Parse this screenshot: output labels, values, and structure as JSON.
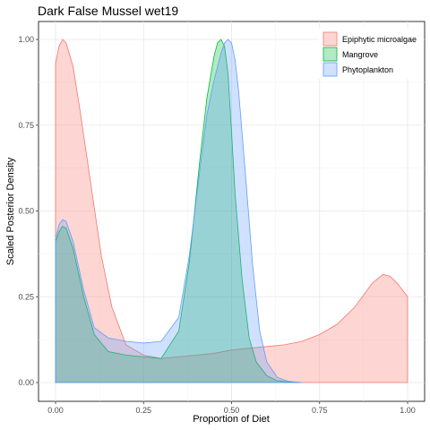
{
  "chart_data": {
    "type": "area",
    "title": "Dark False Mussel wet19",
    "xlabel": "Proportion of Diet",
    "ylabel": "Scaled Posterior Density",
    "xlim": [
      0,
      1
    ],
    "ylim": [
      0,
      1
    ],
    "x_ticks": [
      "0.00",
      "0.25",
      "0.50",
      "0.75",
      "1.00"
    ],
    "y_ticks": [
      "0.00",
      "0.25",
      "0.50",
      "0.75",
      "1.00"
    ],
    "grid": true,
    "legend_position": "top-right",
    "series": [
      {
        "name": "Epiphytic microalgae",
        "fill": "#F8766D",
        "x": [
          0,
          0.01,
          0.02,
          0.03,
          0.05,
          0.07,
          0.1,
          0.13,
          0.16,
          0.2,
          0.25,
          0.3,
          0.35,
          0.4,
          0.45,
          0.5,
          0.55,
          0.6,
          0.65,
          0.7,
          0.75,
          0.8,
          0.85,
          0.9,
          0.93,
          0.95,
          0.97,
          1.0
        ],
        "y": [
          0.93,
          0.98,
          1.0,
          0.99,
          0.92,
          0.79,
          0.58,
          0.37,
          0.22,
          0.11,
          0.08,
          0.07,
          0.075,
          0.08,
          0.085,
          0.095,
          0.1,
          0.105,
          0.11,
          0.12,
          0.14,
          0.17,
          0.22,
          0.29,
          0.315,
          0.31,
          0.29,
          0.25
        ]
      },
      {
        "name": "Mangrove",
        "fill": "#00BA38",
        "x": [
          0,
          0.01,
          0.02,
          0.03,
          0.05,
          0.08,
          0.11,
          0.15,
          0.2,
          0.25,
          0.3,
          0.35,
          0.38,
          0.41,
          0.43,
          0.45,
          0.46,
          0.47,
          0.48,
          0.49,
          0.5,
          0.51,
          0.53,
          0.55,
          0.57,
          0.6,
          0.63,
          0.66,
          0.7
        ],
        "y": [
          0.41,
          0.44,
          0.455,
          0.45,
          0.39,
          0.25,
          0.14,
          0.09,
          0.08,
          0.075,
          0.07,
          0.15,
          0.35,
          0.65,
          0.83,
          0.95,
          0.99,
          1.0,
          0.98,
          0.9,
          0.73,
          0.55,
          0.3,
          0.13,
          0.06,
          0.02,
          0.005,
          0.002,
          0
        ]
      },
      {
        "name": "Phytoplankton",
        "fill": "#619CFF",
        "x": [
          0,
          0.01,
          0.02,
          0.03,
          0.05,
          0.08,
          0.11,
          0.15,
          0.2,
          0.25,
          0.3,
          0.35,
          0.38,
          0.41,
          0.43,
          0.45,
          0.47,
          0.48,
          0.49,
          0.5,
          0.51,
          0.52,
          0.54,
          0.56,
          0.58,
          0.6,
          0.63,
          0.66,
          0.7
        ],
        "y": [
          0.42,
          0.46,
          0.475,
          0.47,
          0.41,
          0.27,
          0.16,
          0.13,
          0.12,
          0.115,
          0.12,
          0.19,
          0.37,
          0.62,
          0.78,
          0.88,
          0.96,
          0.99,
          1.0,
          0.99,
          0.94,
          0.85,
          0.6,
          0.34,
          0.15,
          0.06,
          0.015,
          0.004,
          0
        ]
      }
    ]
  }
}
